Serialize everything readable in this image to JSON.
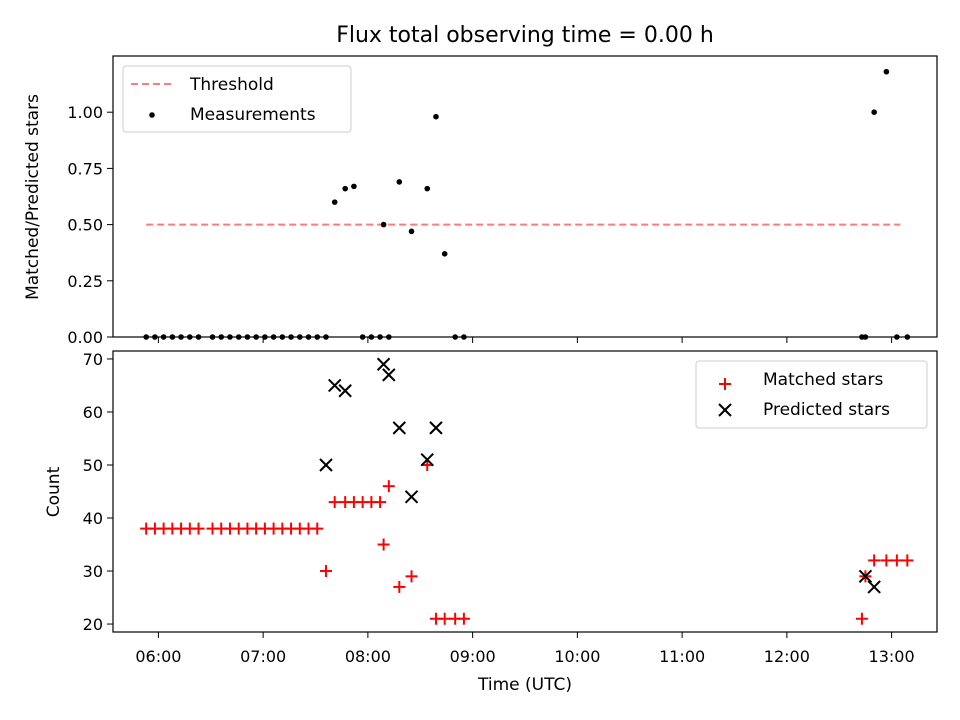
{
  "chart_data": [
    {
      "type": "scatter",
      "title": "Flux total observing time = 0.00 h",
      "xlabel": "",
      "ylabel": "Matched/Predicted stars",
      "xlim": [
        "05:34",
        "13:26"
      ],
      "ylim": [
        0.0,
        1.25
      ],
      "yticks": [
        0.0,
        0.25,
        0.5,
        0.75,
        1.0
      ],
      "ytick_labels": [
        "0.00",
        "0.25",
        "0.50",
        "0.75",
        "1.00"
      ],
      "legend_position": "top-left",
      "legend": [
        {
          "name": "Threshold",
          "marker": "dashed-line",
          "color": "#ff7b7b"
        },
        {
          "name": "Measurements",
          "marker": "dot",
          "color": "#000000"
        }
      ],
      "series": [
        {
          "name": "Threshold",
          "kind": "line",
          "color": "#ff7b7b",
          "x": [
            "05:53",
            "13:05"
          ],
          "y": [
            0.5,
            0.5
          ]
        },
        {
          "name": "Measurements",
          "kind": "dot",
          "color": "#000000",
          "x": [
            "05:53",
            "05:58",
            "06:03",
            "06:08",
            "06:13",
            "06:18",
            "06:23",
            "06:31",
            "06:36",
            "06:41",
            "06:46",
            "06:51",
            "06:56",
            "07:01",
            "07:06",
            "07:11",
            "07:16",
            "07:21",
            "07:26",
            "07:31",
            "07:36",
            "07:41",
            "07:47",
            "07:52",
            "07:57",
            "08:02",
            "08:07",
            "08:09",
            "08:12",
            "08:18",
            "08:25",
            "08:34",
            "08:39",
            "08:44",
            "08:50",
            "08:55",
            "12:43",
            "12:45",
            "12:50",
            "12:57",
            "13:03",
            "13:09"
          ],
          "y": [
            0,
            0,
            0,
            0,
            0,
            0,
            0,
            0,
            0,
            0,
            0,
            0,
            0,
            0,
            0,
            0,
            0,
            0,
            0,
            0,
            0,
            0.6,
            0.66,
            0.67,
            0,
            0,
            0,
            0.5,
            0,
            0.69,
            0.47,
            0.66,
            0.98,
            0.37,
            0,
            0,
            0,
            0,
            1.0,
            1.18,
            0,
            0
          ]
        }
      ]
    },
    {
      "type": "scatter",
      "title": "",
      "xlabel": "Time (UTC)",
      "ylabel": "Count",
      "xlim": [
        "05:34",
        "13:26"
      ],
      "ylim": [
        18.5,
        71.5
      ],
      "yticks": [
        20,
        30,
        40,
        50,
        60,
        70
      ],
      "ytick_labels": [
        "20",
        "30",
        "40",
        "50",
        "60",
        "70"
      ],
      "xticks": [
        "06:00",
        "07:00",
        "08:00",
        "09:00",
        "10:00",
        "11:00",
        "12:00",
        "13:00"
      ],
      "legend_position": "top-right",
      "legend": [
        {
          "name": "Matched stars",
          "marker": "plus",
          "color": "#ff0000"
        },
        {
          "name": "Predicted stars",
          "marker": "x",
          "color": "#000000"
        }
      ],
      "series": [
        {
          "name": "Matched stars",
          "kind": "plus",
          "color": "#ff0000",
          "x": [
            "05:53",
            "05:58",
            "06:03",
            "06:08",
            "06:13",
            "06:18",
            "06:23",
            "06:31",
            "06:36",
            "06:41",
            "06:46",
            "06:51",
            "06:56",
            "07:01",
            "07:06",
            "07:11",
            "07:16",
            "07:21",
            "07:26",
            "07:31",
            "07:36",
            "07:41",
            "07:47",
            "07:52",
            "07:57",
            "08:02",
            "08:07",
            "08:09",
            "08:12",
            "08:18",
            "08:25",
            "08:34",
            "08:39",
            "08:44",
            "08:50",
            "08:55",
            "12:43",
            "12:45",
            "12:50",
            "12:57",
            "13:03",
            "13:09"
          ],
          "y": [
            38,
            38,
            38,
            38,
            38,
            38,
            38,
            38,
            38,
            38,
            38,
            38,
            38,
            38,
            38,
            38,
            38,
            38,
            38,
            38,
            30,
            43,
            43,
            43,
            43,
            43,
            43,
            35,
            46,
            27,
            29,
            50,
            21,
            21,
            21,
            21,
            21,
            29,
            32,
            32,
            32,
            32
          ]
        },
        {
          "name": "Predicted stars",
          "kind": "x",
          "color": "#000000",
          "x": [
            "07:36",
            "07:41",
            "07:47",
            "08:09",
            "08:12",
            "08:18",
            "08:25",
            "08:34",
            "08:39",
            "12:45",
            "12:50"
          ],
          "y": [
            50,
            65,
            64,
            69,
            67,
            57,
            44,
            51,
            57,
            29,
            27
          ]
        }
      ]
    }
  ]
}
